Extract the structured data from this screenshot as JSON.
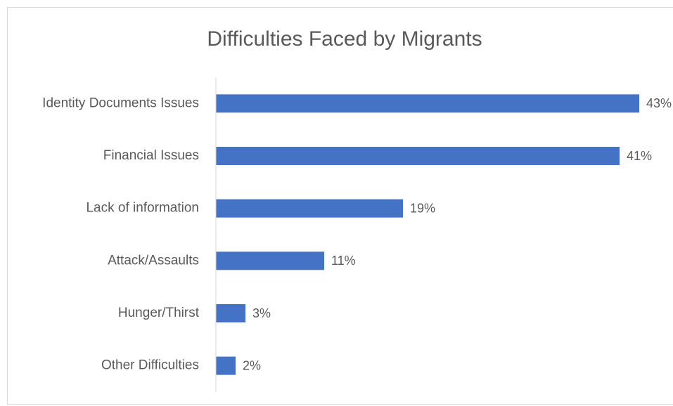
{
  "chart_data": {
    "type": "bar",
    "orientation": "horizontal",
    "title": "Difficulties Faced by Migrants",
    "categories": [
      "Identity Documents Issues",
      "Financial Issues",
      "Lack of information",
      "Attack/Assaults",
      "Hunger/Thirst",
      "Other Difficulties"
    ],
    "values": [
      43,
      41,
      19,
      11,
      3,
      2
    ],
    "value_labels": [
      "43%",
      "41%",
      "19%",
      "11%",
      "3%",
      "2%"
    ],
    "color": "#4472c4",
    "xlim": [
      0,
      45
    ]
  }
}
